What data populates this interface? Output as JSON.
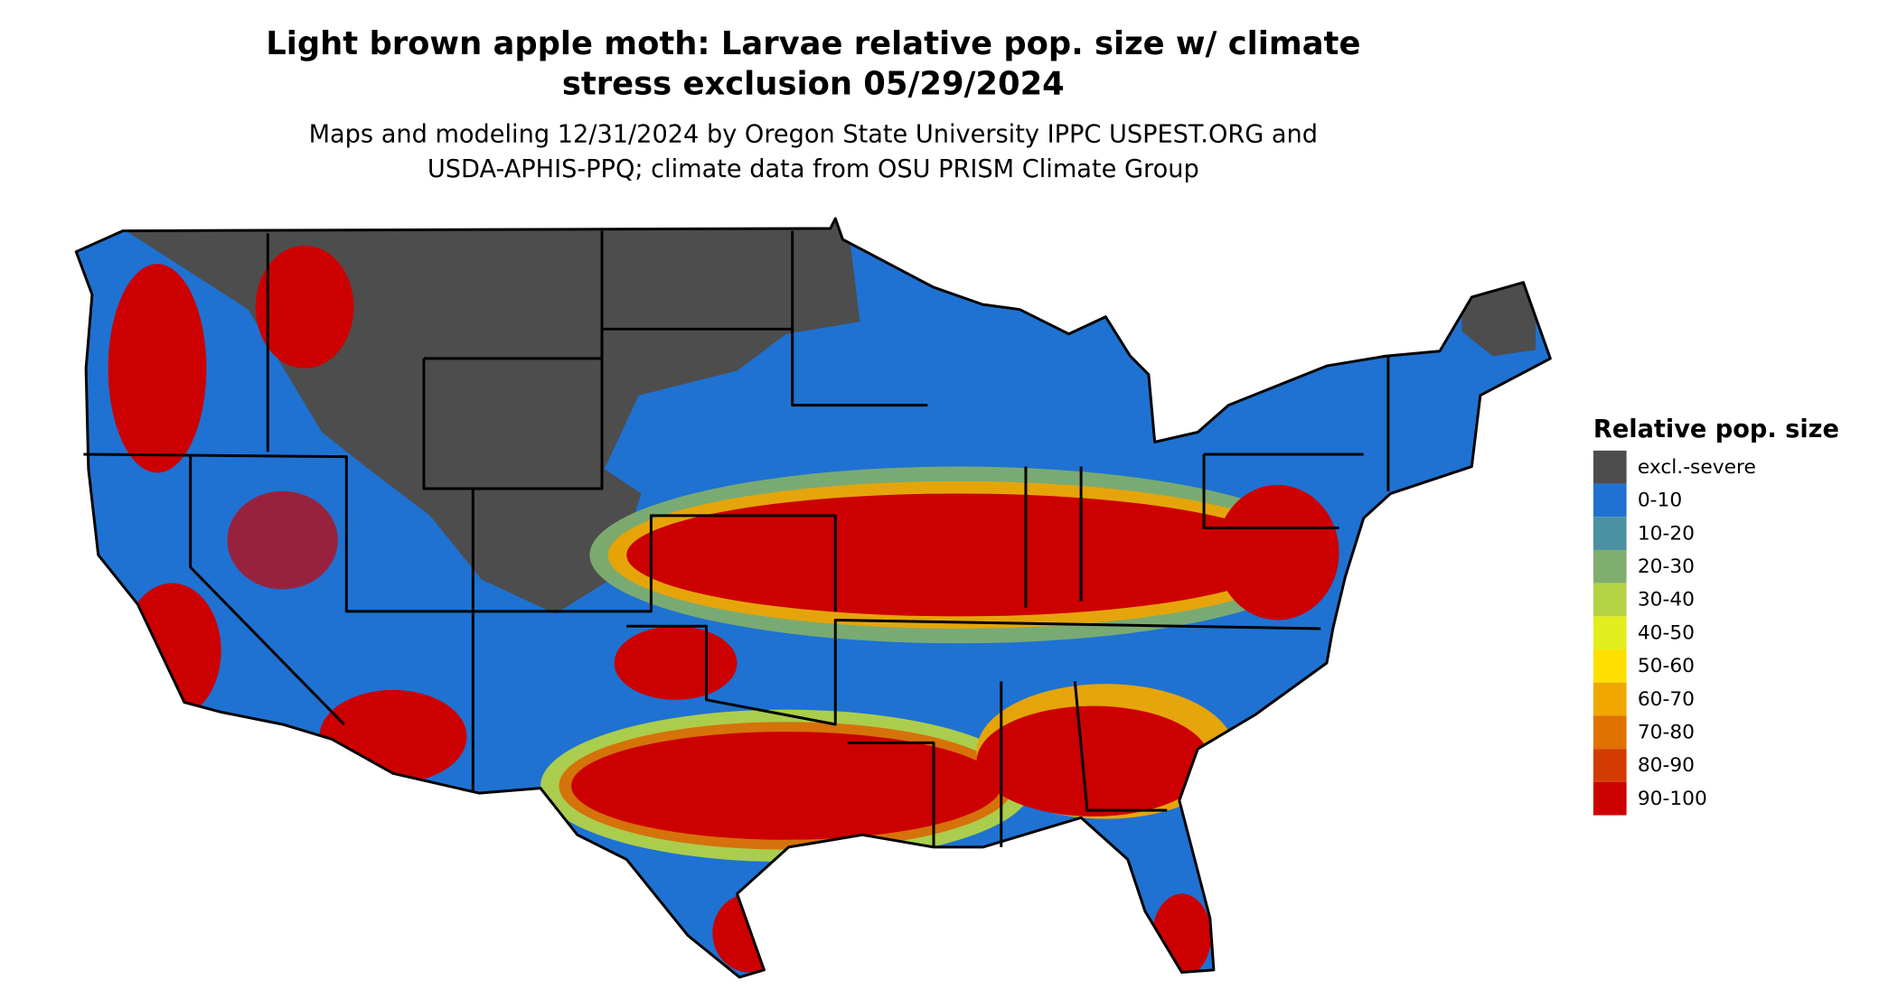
{
  "map": {
    "title_lines": [
      "Light brown apple moth: Larvae relative pop. size w/ climate",
      "stress exclusion 05/29/2024"
    ],
    "subtitle_lines": [
      "Maps and modeling 12/31/2024 by Oregon State University IPPC USPEST.ORG and",
      "USDA-APHIS-PPQ; climate data from OSU PRISM Climate Group"
    ]
  },
  "legend": {
    "title": "Relative pop. size",
    "items": [
      {
        "label": "excl.-severe",
        "color": "#4d4d4d"
      },
      {
        "label": "0-10",
        "color": "#1f72d1"
      },
      {
        "label": "10-20",
        "color": "#4a92a2"
      },
      {
        "label": "20-30",
        "color": "#7fae6e"
      },
      {
        "label": "30-40",
        "color": "#b3d246"
      },
      {
        "label": "40-50",
        "color": "#e3ee1e"
      },
      {
        "label": "50-60",
        "color": "#fde000"
      },
      {
        "label": "60-70",
        "color": "#f0a800"
      },
      {
        "label": "70-80",
        "color": "#e07200"
      },
      {
        "label": "80-90",
        "color": "#d23c00"
      },
      {
        "label": "90-100",
        "color": "#cc0000"
      }
    ]
  }
}
